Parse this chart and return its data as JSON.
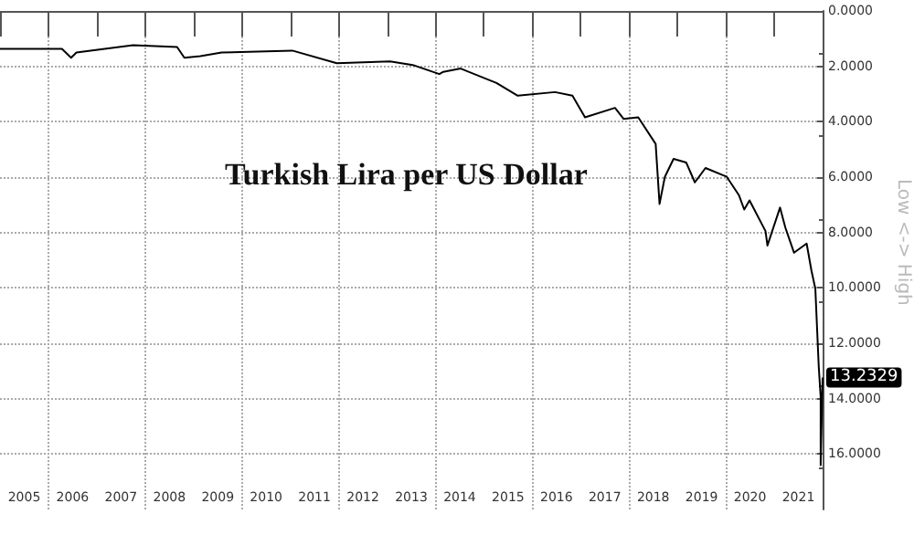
{
  "chart_data": {
    "type": "line",
    "title": "Turkish Lira per US Dollar",
    "annotations": [
      "Low <-> High"
    ],
    "x": [
      2005.0,
      2006.28,
      2006.47,
      2006.58,
      2007.75,
      2008.66,
      2008.81,
      2009.14,
      2009.58,
      2011.04,
      2011.96,
      2013.06,
      2013.53,
      2014.08,
      2014.16,
      2014.52,
      2015.26,
      2015.7,
      2016.47,
      2016.83,
      2017.09,
      2017.71,
      2017.89,
      2018.19,
      2018.55,
      2018.63,
      2018.74,
      2018.92,
      2019.18,
      2019.36,
      2019.58,
      2020.02,
      2020.27,
      2020.38,
      2020.49,
      2020.82,
      2020.86,
      2021.12,
      2021.23,
      2021.41,
      2021.67,
      2021.77,
      2021.85,
      2021.92,
      2021.96,
      2021.96,
      2022.0
    ],
    "series": [
      {
        "color": "#000000",
        "values": [
          1.37,
          1.37,
          1.69,
          1.5,
          1.24,
          1.3,
          1.69,
          1.63,
          1.5,
          1.43,
          1.89,
          1.82,
          1.95,
          2.28,
          2.2,
          2.08,
          2.6,
          3.06,
          2.93,
          3.06,
          3.84,
          3.5,
          3.9,
          3.84,
          4.8,
          6.97,
          5.99,
          5.34,
          5.47,
          6.19,
          5.67,
          5.99,
          6.65,
          7.17,
          6.84,
          7.95,
          8.47,
          7.1,
          7.82,
          8.73,
          8.4,
          9.38,
          10.03,
          12.83,
          13.94,
          16.4,
          13.2329
        ],
        "value_labels": [
          null,
          null,
          null,
          null,
          null,
          null,
          null,
          null,
          null,
          null,
          null,
          null,
          null,
          null,
          null,
          null,
          null,
          null,
          null,
          null,
          null,
          null,
          null,
          null,
          null,
          null,
          null,
          null,
          null,
          null,
          null,
          null,
          null,
          null,
          null,
          null,
          null,
          null,
          null,
          null,
          null,
          null,
          null,
          null,
          null,
          null,
          "13.2329"
        ]
      }
    ],
    "xlim": [
      2005,
      2022
    ],
    "xticks": [
      {
        "value": 2005.5,
        "label": "2005"
      },
      {
        "value": 2006.5,
        "label": "2006"
      },
      {
        "value": 2007.5,
        "label": "2007"
      },
      {
        "value": 2008.5,
        "label": "2008"
      },
      {
        "value": 2009.5,
        "label": "2009"
      },
      {
        "value": 2010.5,
        "label": "2010"
      },
      {
        "value": 2011.5,
        "label": "2011"
      },
      {
        "value": 2012.5,
        "label": "2012"
      },
      {
        "value": 2013.5,
        "label": "2013"
      },
      {
        "value": 2014.5,
        "label": "2014"
      },
      {
        "value": 2015.5,
        "label": "2015"
      },
      {
        "value": 2016.5,
        "label": "2016"
      },
      {
        "value": 2017.5,
        "label": "2017"
      },
      {
        "value": 2018.5,
        "label": "2018"
      },
      {
        "value": 2019.5,
        "label": "2019"
      },
      {
        "value": 2020.5,
        "label": "2020"
      },
      {
        "value": 2021.5,
        "label": "2021"
      }
    ],
    "ylim": [
      18,
      0
    ],
    "yticks": [
      {
        "value": 0,
        "label": "0.0000"
      },
      {
        "value": 2,
        "label": "2.0000"
      },
      {
        "value": 4,
        "label": "4.0000"
      },
      {
        "value": 6,
        "label": "6.0000"
      },
      {
        "value": 8,
        "label": "8.0000"
      },
      {
        "value": 10,
        "label": "10.0000"
      },
      {
        "value": 12,
        "label": "12.0000"
      },
      {
        "value": 14,
        "label": "14.0000"
      },
      {
        "value": 16,
        "label": "16.0000"
      }
    ],
    "grid": true
  }
}
